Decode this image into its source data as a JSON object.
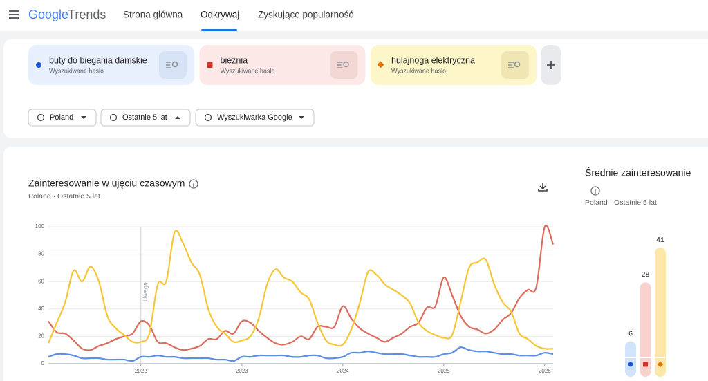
{
  "header": {
    "logo_google": "Google",
    "logo_trends": "Trends",
    "nav": [
      "Strona główna",
      "Odkrywaj",
      "Zyskujące popularność"
    ]
  },
  "search_terms": [
    {
      "kind": "Wyszukiwane hasło"
    },
    {
      "kind": "Wyszukiwane hasło"
    },
    {
      "kind": "Wyszukiwane hasło"
    }
  ],
  "filters": [
    "Poland",
    "Ostatnie 5 lat",
    "Wyszukiwarka Google"
  ],
  "chart_data": [
    {
      "type": "line",
      "title": "Zainteresowanie w ujęciu czasowym",
      "subtitle": "Poland · Ostatnie 5 lat",
      "annotation": "Uwaga",
      "categories": [
        null,
        null,
        null,
        null,
        null,
        null,
        null,
        null,
        null,
        null,
        null,
        "2022",
        null,
        null,
        null,
        null,
        null,
        null,
        null,
        null,
        null,
        null,
        null,
        "2023",
        null,
        null,
        null,
        null,
        null,
        null,
        null,
        null,
        null,
        null,
        null,
        "2024",
        null,
        null,
        null,
        null,
        null,
        null,
        null,
        null,
        null,
        null,
        null,
        "2025",
        null,
        null,
        null,
        null,
        null,
        null,
        null,
        null,
        null,
        null,
        null,
        "2026",
        null
      ],
      "ylim": [
        0,
        100
      ],
      "yticks": [
        0,
        20,
        40,
        60,
        80,
        100
      ],
      "grid": true,
      "series": [
        {
          "name": "buty do biegania damskie",
          "color": "#5b8ee6",
          "values": [
            5,
            7,
            7,
            6,
            4,
            4,
            4,
            3,
            3,
            3,
            2,
            5,
            5,
            6,
            5,
            5,
            4,
            4,
            4,
            4,
            3,
            3,
            2,
            5,
            5,
            6,
            6,
            6,
            6,
            5,
            5,
            6,
            6,
            4,
            4,
            5,
            8,
            8,
            9,
            8,
            7,
            7,
            7,
            6,
            5,
            5,
            5,
            7,
            8,
            12,
            10,
            9,
            9,
            8,
            7,
            7,
            6,
            6,
            6,
            8,
            7
          ]
        },
        {
          "name": "bieżnia",
          "color": "#dd6b5c",
          "values": [
            31,
            23,
            22,
            17,
            11,
            10,
            13,
            15,
            18,
            20,
            22,
            31,
            28,
            16,
            15,
            12,
            10,
            11,
            13,
            18,
            18,
            24,
            22,
            31,
            30,
            24,
            19,
            15,
            14,
            16,
            20,
            18,
            27,
            27,
            27,
            42,
            33,
            26,
            22,
            19,
            16,
            19,
            22,
            27,
            30,
            41,
            42,
            63,
            50,
            35,
            27,
            25,
            22,
            25,
            32,
            37,
            48,
            54,
            56,
            100,
            87
          ]
        },
        {
          "name": "hulajnoga elektryczna",
          "color": "#f6c636",
          "values": [
            15,
            30,
            45,
            68,
            60,
            71,
            60,
            35,
            26,
            21,
            16,
            16,
            22,
            58,
            60,
            96,
            88,
            74,
            65,
            40,
            27,
            22,
            16,
            17,
            20,
            33,
            58,
            69,
            63,
            60,
            52,
            47,
            30,
            17,
            14,
            14,
            25,
            44,
            67,
            65,
            58,
            54,
            50,
            44,
            30,
            24,
            21,
            19,
            21,
            45,
            70,
            74,
            76,
            58,
            45,
            38,
            22,
            18,
            13,
            11,
            11
          ]
        }
      ]
    },
    {
      "type": "bar",
      "title": "Średnie zainteresowanie",
      "subtitle": "Poland · Ostatnie 5 lat",
      "values": [
        6,
        28,
        41
      ],
      "colors": [
        "#d2e3fc",
        "#fad2cd",
        "#fde7a8"
      ]
    }
  ]
}
